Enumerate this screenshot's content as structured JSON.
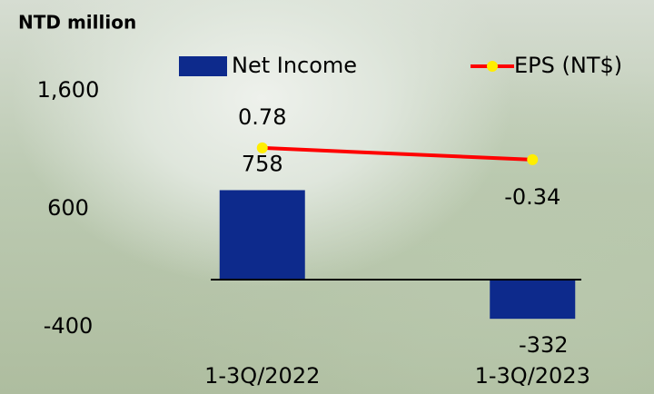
{
  "chart_data": {
    "type": "bar",
    "y_label": "NTD  million",
    "categories": [
      "1-3Q/2022",
      "1-3Q/2023"
    ],
    "series": [
      {
        "name": "Net Income",
        "type": "bar",
        "color": "#0d2a8c",
        "values": [
          758,
          -332
        ]
      },
      {
        "name": "EPS (NT$)",
        "type": "line",
        "axis": "y2",
        "color": "#ff0000",
        "marker_color": "#ffee00",
        "values": [
          0.78,
          -0.34
        ]
      }
    ],
    "ylim": [
      -400,
      1600
    ],
    "yticks": [
      {
        "value": 1600,
        "label": "1,600"
      },
      600,
      -400
    ],
    "y2lim": [
      -16.2,
      6.2
    ],
    "grid": false
  }
}
